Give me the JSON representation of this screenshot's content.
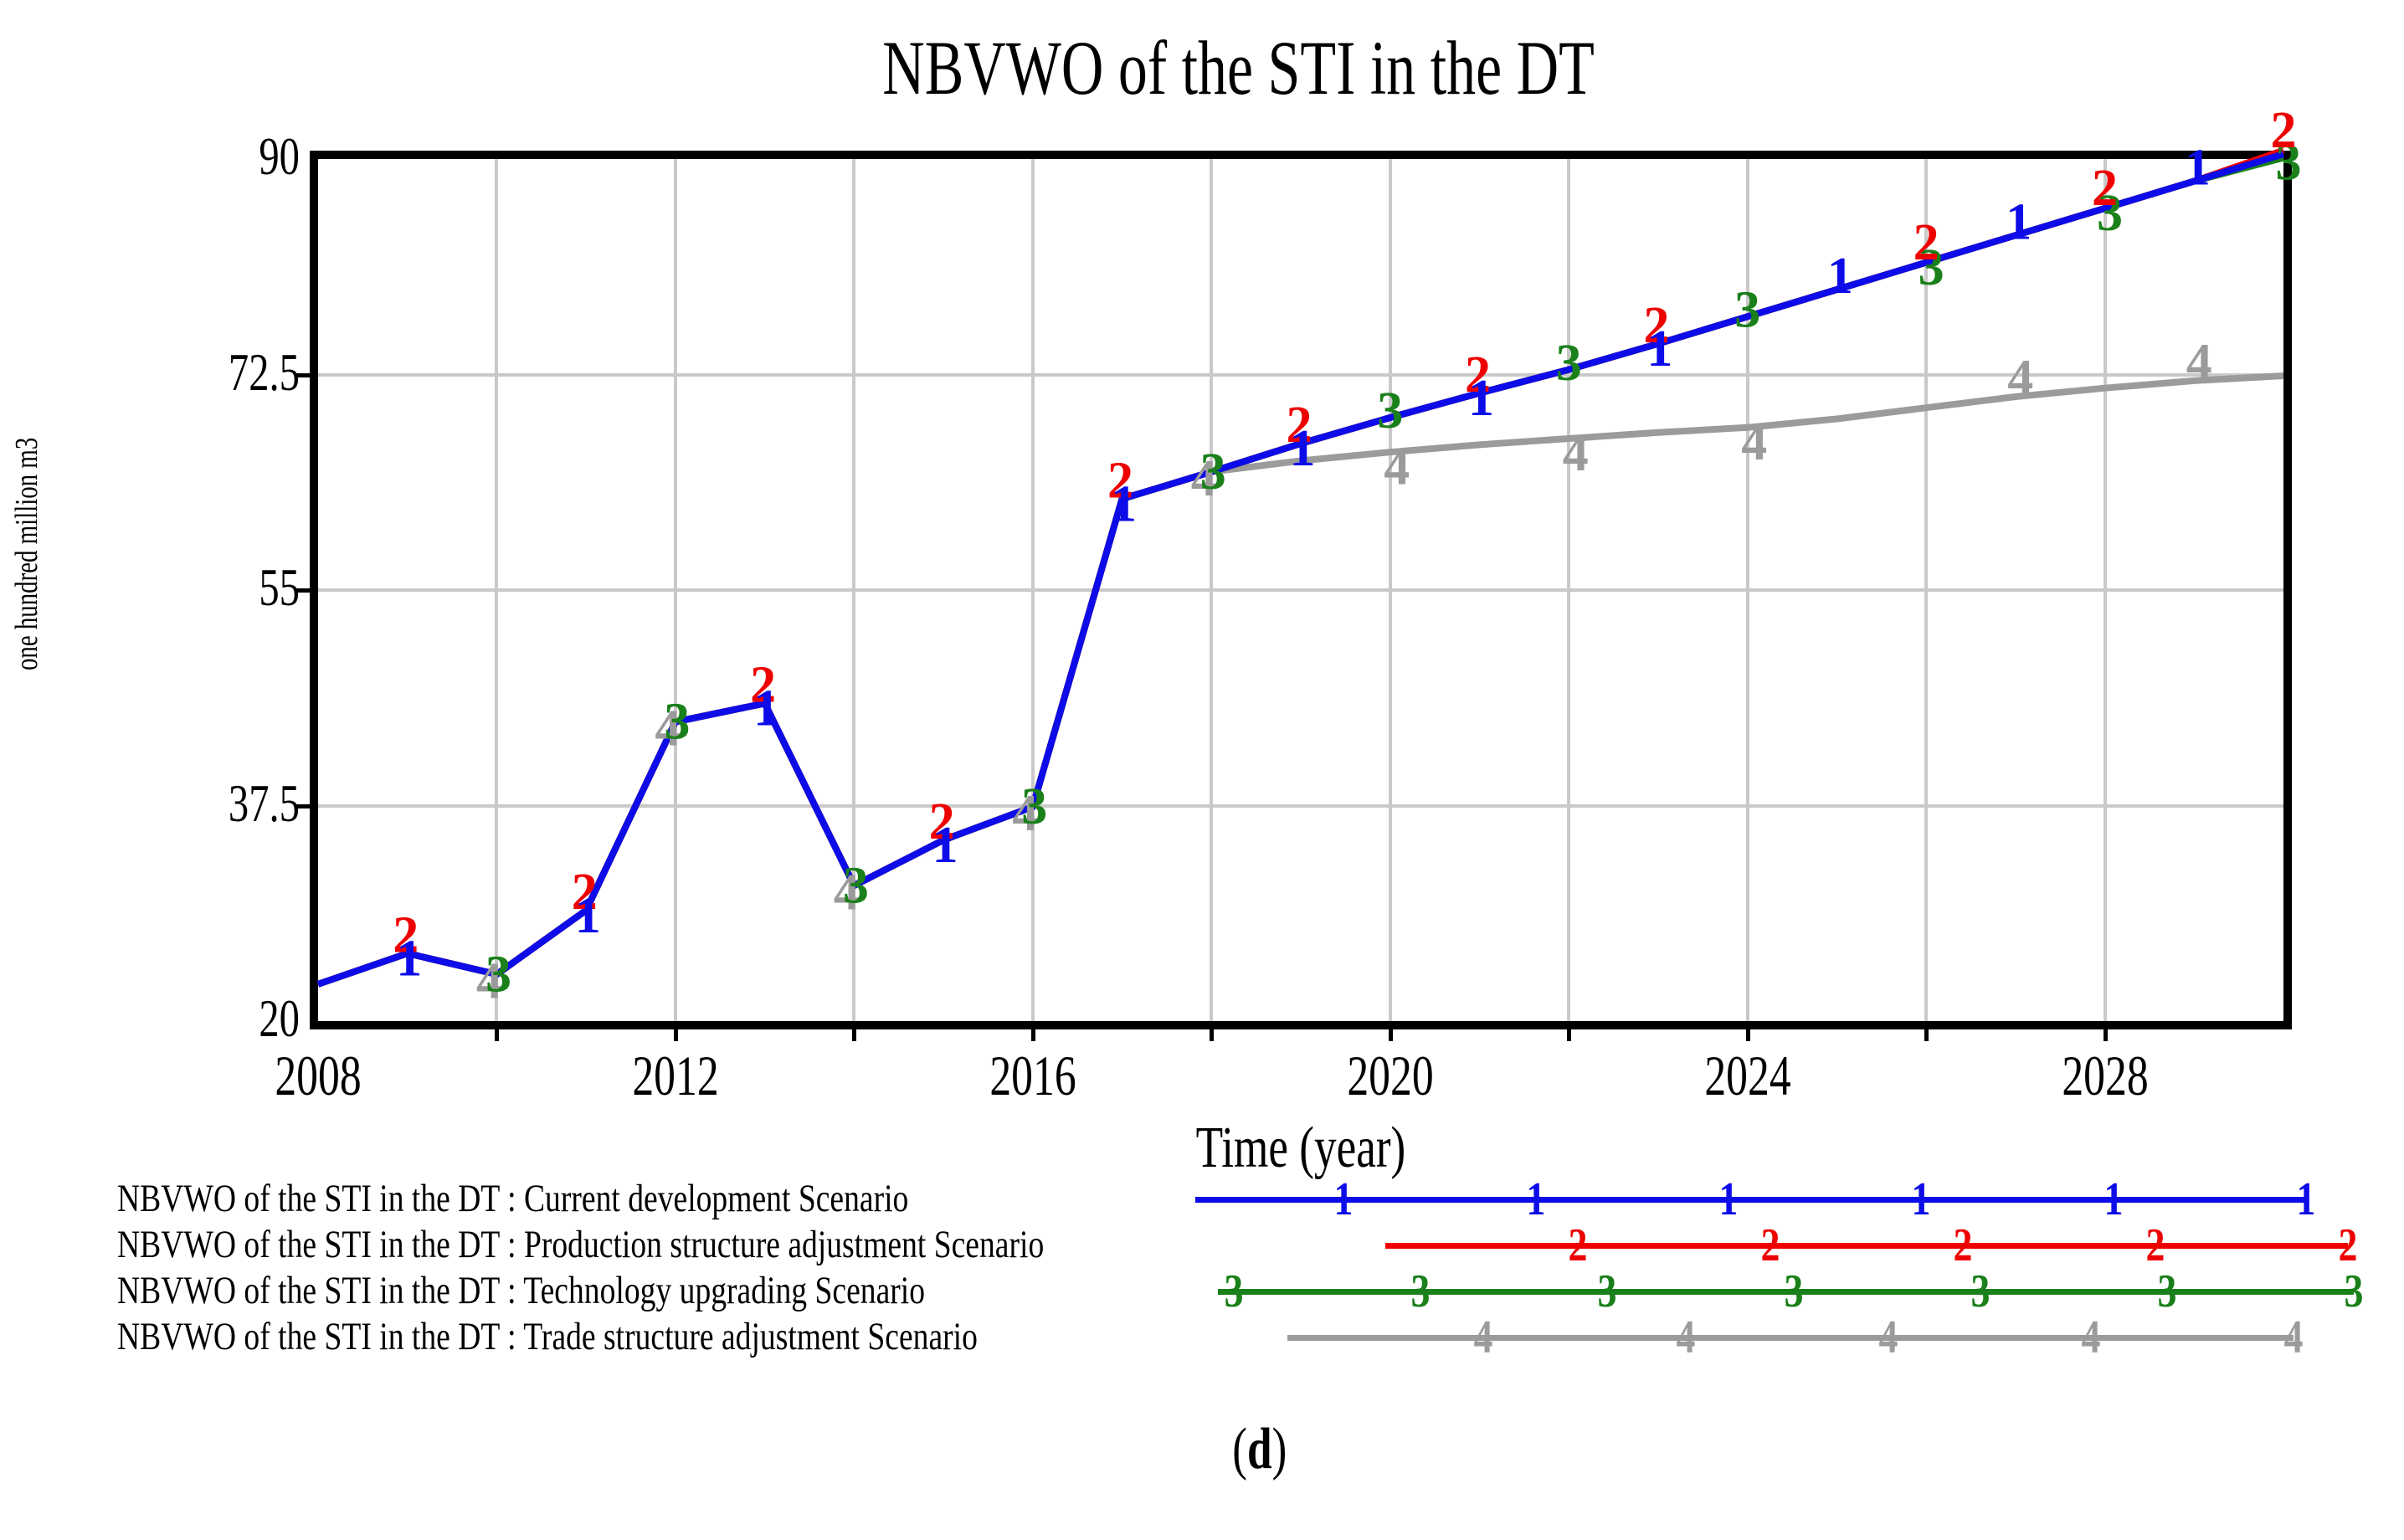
{
  "title": "NBVWO of the STI in the DT",
  "y_axis": {
    "label": "one hundred million m3",
    "ticks": [
      "90",
      "72.5",
      "55",
      "37.5",
      "20"
    ]
  },
  "x_axis": {
    "label": "Time (year)",
    "ticks": [
      "2008",
      "2012",
      "2016",
      "2020",
      "2024",
      "2028"
    ]
  },
  "caption": {
    "open": "(",
    "letter": "d",
    "close": ")"
  },
  "colors": {
    "series1_blue": "#0d0ce8",
    "series2_red": "#ee0000",
    "series3_green": "#1a801a",
    "series4_gray": "#9b9b9b",
    "gridline": "#c9c9c9",
    "frame": "#000000"
  },
  "chart_data": {
    "type": "line",
    "title": "NBVWO of the STI in the DT",
    "xlabel": "Time (year)",
    "ylabel": "one hundred million m3",
    "xlim": [
      2008,
      2030
    ],
    "ylim": [
      20,
      90
    ],
    "x_ticks": [
      2008,
      2012,
      2016,
      2020,
      2024,
      2028
    ],
    "y_ticks": [
      20,
      37.5,
      55,
      72.5,
      90
    ],
    "grid": true,
    "legend_position": "bottom",
    "x": [
      2008,
      2009,
      2010,
      2011,
      2012,
      2013,
      2014,
      2015,
      2016,
      2017,
      2018,
      2019,
      2020,
      2021,
      2022,
      2023,
      2024,
      2025,
      2026,
      2027,
      2028,
      2029,
      2030
    ],
    "series": [
      {
        "name": "NBVWO of the STI in the DT : Current development Scenario",
        "marker": "1",
        "color": "#0d0ce8",
        "values": [
          23.0,
          25.5,
          23.8,
          29.0,
          44.3,
          45.8,
          31.0,
          34.7,
          37.4,
          62.4,
          64.6,
          66.9,
          69.0,
          71.0,
          72.9,
          75.0,
          77.2,
          79.4,
          81.6,
          83.8,
          86.0,
          88.2,
          90.4
        ],
        "marker_years": [
          2009,
          2011,
          2013,
          2015,
          2017,
          2019,
          2021,
          2023,
          2025,
          2027,
          2029
        ]
      },
      {
        "name": "NBVWO of the STI in the DT : Production structure adjustment Scenario",
        "marker": "2",
        "color": "#ee0000",
        "values": [
          23.0,
          25.5,
          23.8,
          29.0,
          44.3,
          45.8,
          31.0,
          34.7,
          37.4,
          62.4,
          64.6,
          66.9,
          69.0,
          71.0,
          72.9,
          75.0,
          77.2,
          79.4,
          81.6,
          83.8,
          86.0,
          88.2,
          90.7
        ],
        "marker_years": [
          2009,
          2011,
          2013,
          2015,
          2017,
          2019,
          2021,
          2023,
          2026,
          2028,
          2030
        ]
      },
      {
        "name": "NBVWO of the STI in the DT : Technology upgrading Scenario",
        "marker": "3",
        "color": "#1a801a",
        "values": [
          23.0,
          25.5,
          23.8,
          29.0,
          44.3,
          45.8,
          31.0,
          34.7,
          37.4,
          62.4,
          64.6,
          66.9,
          69.0,
          71.0,
          72.9,
          75.0,
          77.2,
          79.4,
          81.6,
          83.8,
          86.0,
          88.2,
          90.1
        ],
        "marker_years": [
          2010,
          2012,
          2014,
          2016,
          2018,
          2020,
          2022,
          2024,
          2026,
          2028,
          2030
        ]
      },
      {
        "name": "NBVWO of the STI in the DT : Trade structure adjustment Scenario",
        "marker": "4",
        "color": "#9b9b9b",
        "values": [
          23.0,
          25.5,
          23.8,
          29.0,
          44.3,
          45.8,
          31.0,
          34.7,
          37.4,
          62.4,
          64.6,
          65.5,
          66.2,
          66.8,
          67.3,
          67.8,
          68.2,
          68.9,
          69.8,
          70.7,
          71.4,
          72.0,
          72.4
        ],
        "marker_years": [
          2010,
          2012,
          2014,
          2016,
          2018,
          2020,
          2022,
          2024,
          2027,
          2029
        ]
      }
    ]
  },
  "legend": {
    "rows": [
      {
        "label": "NBVWO of the STI in the DT : Current development Scenario",
        "marker": "1",
        "color": "#0d0ce8"
      },
      {
        "label": "NBVWO of the STI in the DT : Production structure adjustment Scenario",
        "marker": "2",
        "color": "#ee0000"
      },
      {
        "label": "NBVWO of the STI in the DT : Technology upgrading Scenario",
        "marker": "3",
        "color": "#1a801a"
      },
      {
        "label": "NBVWO of the STI in the DT : Trade structure adjustment Scenario",
        "marker": "4",
        "color": "#9b9b9b"
      }
    ]
  }
}
